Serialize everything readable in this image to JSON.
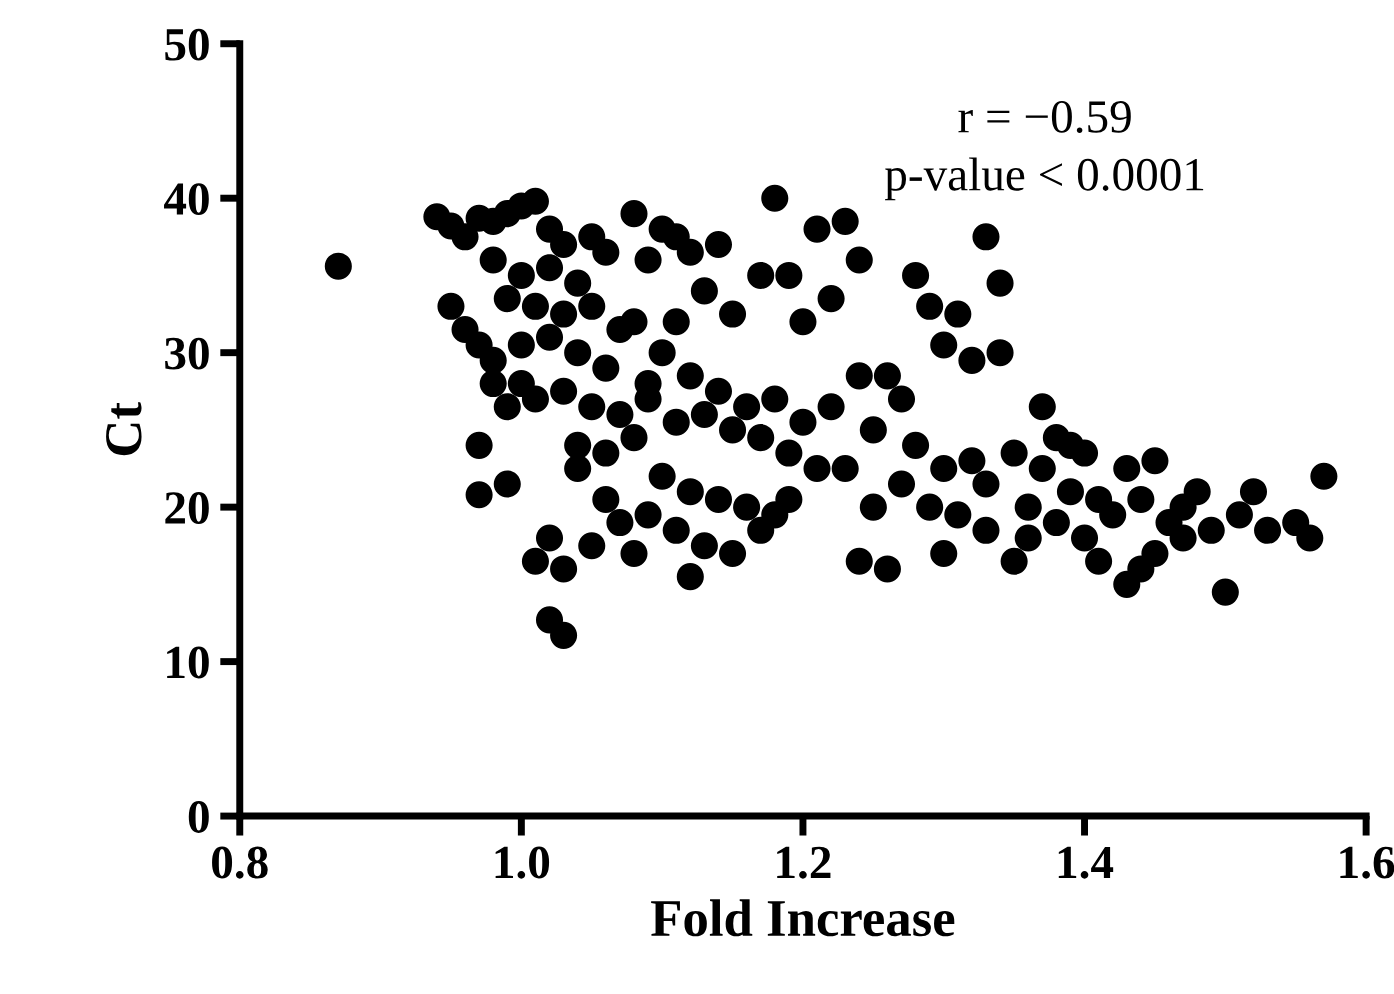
{
  "chart_data": {
    "type": "scatter",
    "xlabel": "Fold Increase",
    "ylabel": "Ct",
    "annotations": [
      "r = −0.59",
      "p-value < 0.0001"
    ],
    "xlim": [
      0.8,
      1.6
    ],
    "xticks": [
      {
        "value": 0.8,
        "label": "0.8"
      },
      {
        "value": 1.0,
        "label": "1.0"
      },
      {
        "value": 1.2,
        "label": "1.2"
      },
      {
        "value": 1.4,
        "label": "1.4"
      },
      {
        "value": 1.6,
        "label": "1.6"
      }
    ],
    "ylim": [
      0,
      50
    ],
    "yticks": [
      0,
      10,
      20,
      30,
      40,
      50
    ],
    "grid": false,
    "marker": "circle",
    "series": [
      {
        "color": "#000000",
        "x": [
          0.87,
          0.94,
          0.95,
          0.96,
          0.97,
          0.98,
          0.99,
          1.0,
          1.01,
          1.02,
          1.03,
          1.05,
          1.06,
          0.98,
          1.0,
          1.02,
          1.04,
          0.99,
          1.01,
          1.03,
          0.95,
          0.96,
          0.97,
          0.98,
          1.0,
          1.02,
          1.04,
          1.06,
          1.07,
          1.05,
          1.08,
          1.09,
          1.0,
          1.01,
          1.03,
          1.05,
          1.07,
          0.98,
          0.97,
          0.99,
          1.04,
          1.06,
          1.08,
          0.97,
          0.99,
          1.01,
          1.02,
          1.03,
          1.05,
          1.04,
          1.06,
          1.07,
          1.08,
          1.02,
          1.03,
          1.09,
          1.08,
          1.1,
          1.11,
          1.12,
          1.14,
          1.13,
          1.11,
          1.1,
          1.12,
          1.14,
          1.16,
          1.18,
          1.13,
          1.15,
          1.11,
          1.09,
          1.17,
          1.19,
          1.2,
          1.22,
          1.21,
          1.23,
          1.1,
          1.12,
          1.14,
          1.16,
          1.18,
          1.11,
          1.13,
          1.15,
          1.12,
          1.17,
          1.19,
          1.09,
          1.18,
          1.21,
          1.23,
          1.17,
          1.19,
          1.22,
          1.24,
          1.15,
          1.2,
          1.24,
          1.26,
          1.25,
          1.27,
          1.28,
          1.29,
          1.31,
          1.33,
          1.34,
          1.3,
          1.32,
          1.34,
          1.28,
          1.3,
          1.27,
          1.29,
          1.31,
          1.33,
          1.35,
          1.32,
          1.25,
          1.24,
          1.26,
          1.3,
          1.33,
          1.35,
          1.36,
          1.37,
          1.38,
          1.39,
          1.4,
          1.37,
          1.39,
          1.41,
          1.43,
          1.45,
          1.42,
          1.44,
          1.46,
          1.48,
          1.4,
          1.41,
          1.45,
          1.47,
          1.49,
          1.51,
          1.52,
          1.53,
          1.55,
          1.56,
          1.43,
          1.5,
          1.57,
          1.38,
          1.36,
          1.44,
          1.47
        ],
        "values": [
          35.6,
          38.8,
          38.2,
          37.5,
          38.7,
          38.5,
          39.0,
          39.5,
          39.8,
          38.0,
          37.0,
          37.5,
          36.5,
          36.0,
          35.0,
          35.5,
          34.5,
          33.5,
          33.0,
          32.5,
          33.0,
          31.5,
          30.5,
          29.5,
          30.5,
          31.0,
          30.0,
          29.0,
          31.5,
          33.0,
          32.0,
          28.0,
          28.0,
          27.0,
          27.5,
          26.5,
          26.0,
          28.0,
          24.0,
          26.5,
          24.0,
          23.5,
          24.5,
          20.8,
          21.5,
          16.5,
          18.0,
          16.0,
          17.5,
          22.5,
          20.5,
          19.0,
          17.0,
          12.7,
          11.7,
          36.0,
          39.0,
          38.0,
          37.5,
          36.5,
          37.0,
          34.0,
          32.0,
          30.0,
          28.5,
          27.5,
          26.5,
          27.0,
          26.0,
          25.0,
          25.5,
          27.0,
          24.5,
          23.5,
          25.5,
          26.5,
          22.5,
          22.5,
          22.0,
          21.0,
          20.5,
          20.0,
          19.5,
          18.5,
          17.5,
          17.0,
          15.5,
          18.5,
          20.5,
          19.5,
          40.0,
          38.0,
          38.5,
          35.0,
          35.0,
          33.5,
          36.0,
          32.5,
          32.0,
          28.5,
          28.5,
          25.0,
          27.0,
          35.0,
          33.0,
          32.5,
          37.5,
          34.5,
          30.5,
          29.5,
          30.0,
          24.0,
          22.5,
          21.5,
          20.0,
          19.5,
          21.5,
          23.5,
          23.0,
          20.0,
          16.5,
          16.0,
          17.0,
          18.5,
          16.5,
          20.0,
          26.5,
          24.5,
          24.0,
          23.5,
          22.5,
          21.0,
          20.5,
          22.5,
          23.0,
          19.5,
          20.5,
          19.0,
          21.0,
          18.0,
          16.5,
          17.0,
          18.0,
          18.5,
          19.5,
          21.0,
          18.5,
          19.0,
          18.0,
          15.0,
          14.5,
          22.0,
          19.0,
          18.0,
          16.0,
          20.0
        ]
      }
    ]
  }
}
